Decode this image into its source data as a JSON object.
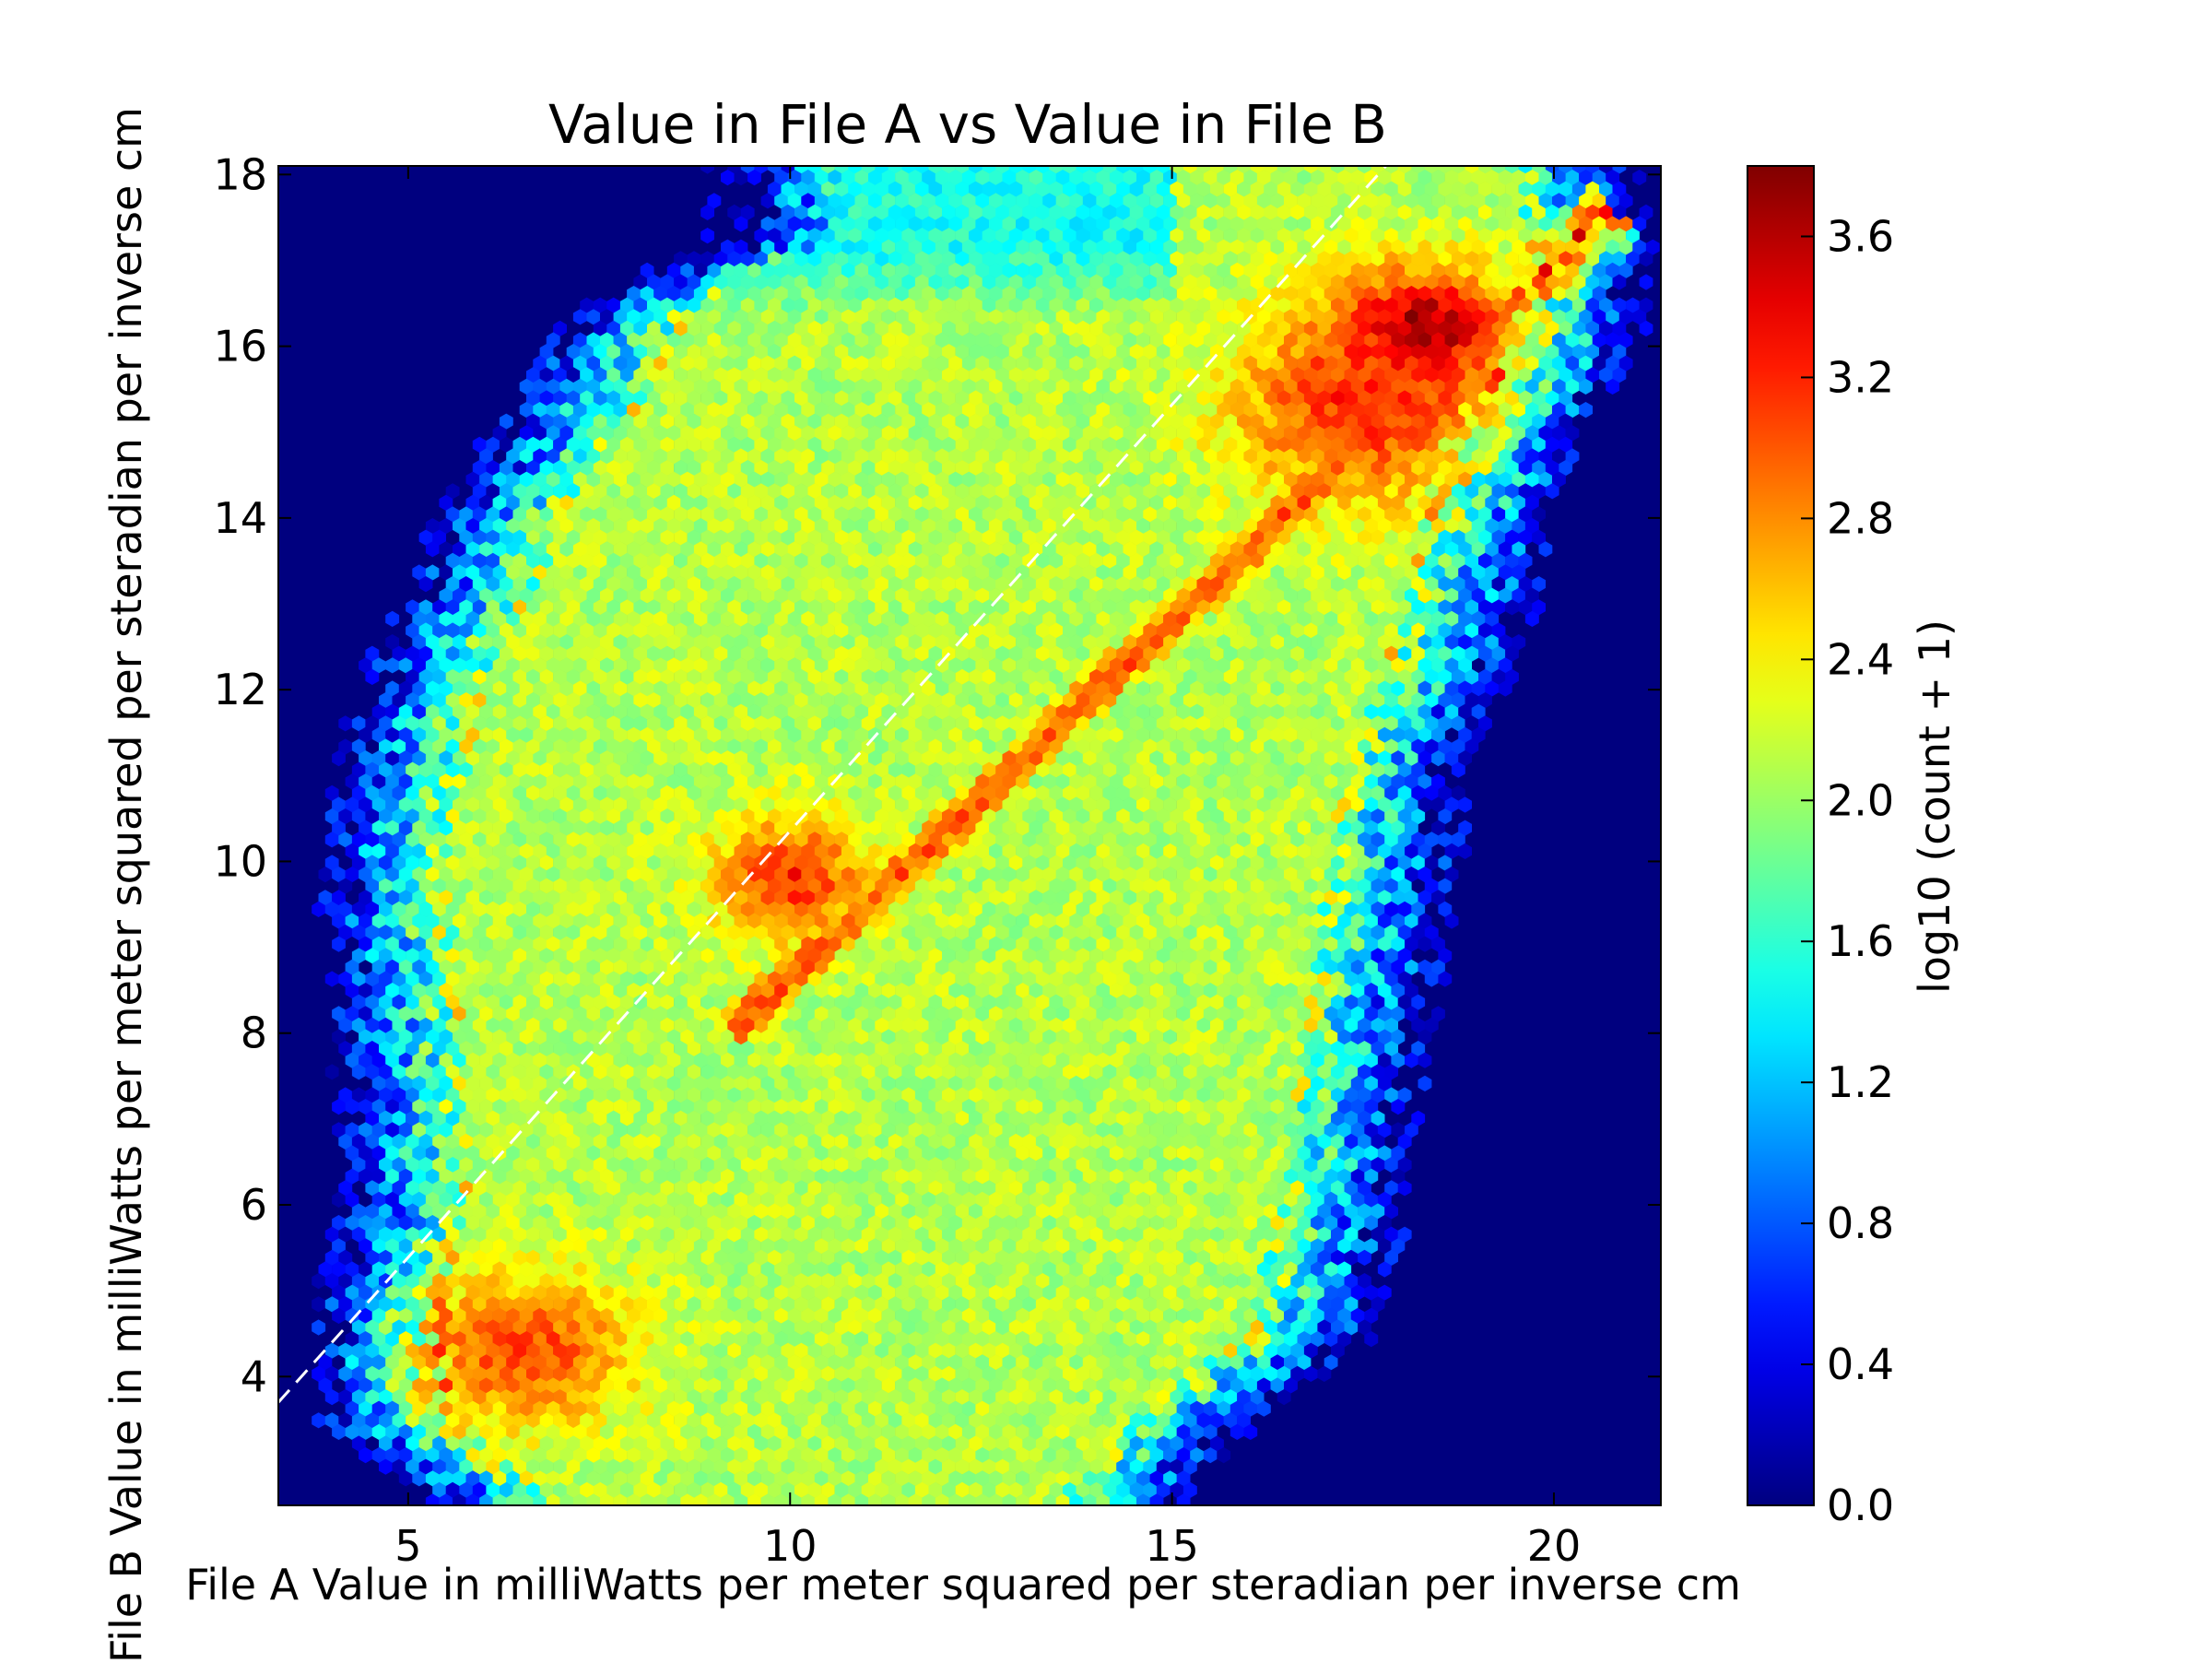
{
  "chart_data": {
    "type": "heatmap",
    "subtype": "hexbin",
    "title": "Value in File A vs Value in File B",
    "xlabel": "File A Value in milliWatts per meter squared per steradian per inverse cm",
    "ylabel": "File B Value in milliWatts per meter squared per steradian per inverse cm",
    "xlim": [
      3.3,
      21.4
    ],
    "ylim": [
      2.5,
      18.1
    ],
    "xticks": [
      5,
      10,
      15,
      20
    ],
    "yticks": [
      4,
      6,
      8,
      10,
      12,
      14,
      16,
      18
    ],
    "background_color": "#00007f",
    "colormap": "jet",
    "colorbar": {
      "label": "log10 (count + 1)",
      "range": [
        0.0,
        3.8
      ],
      "ticks": [
        "0.0",
        "0.4",
        "0.8",
        "1.2",
        "1.6",
        "2.0",
        "2.4",
        "2.8",
        "3.2",
        "3.6"
      ]
    },
    "reference_line": {
      "style": "dashed",
      "color": "#ffffff",
      "from": [
        3.3,
        3.7
      ],
      "to": [
        17.8,
        18.1
      ]
    },
    "density_estimate": {
      "extent_xmin": [
        [
          2.6,
          5.3
        ],
        [
          3.5,
          3.9
        ],
        [
          5,
          3.9
        ],
        [
          6,
          4.2
        ],
        [
          8,
          4.1
        ],
        [
          10,
          3.9
        ],
        [
          12,
          4.4
        ],
        [
          14,
          5.5
        ],
        [
          16.5,
          7.2
        ],
        [
          17.3,
          9
        ]
      ],
      "extent_xmax": [
        [
          2.6,
          15.1
        ],
        [
          3.6,
          16.2
        ],
        [
          4.5,
          17.6
        ],
        [
          6,
          18.0
        ],
        [
          8,
          18.3
        ],
        [
          10,
          18.7
        ],
        [
          11,
          18.8
        ],
        [
          12,
          19.3
        ],
        [
          13,
          19.7
        ],
        [
          14,
          19.9
        ],
        [
          15,
          20.2
        ],
        [
          16,
          21.0
        ],
        [
          17,
          21.3
        ],
        [
          17.8,
          21.0
        ]
      ],
      "peaks": [
        {
          "x": 6.5,
          "y": 4.3,
          "sx": 1.0,
          "sy": 0.6,
          "value": 3.1
        },
        {
          "x": 10.0,
          "y": 9.8,
          "sx": 0.7,
          "sy": 0.5,
          "value": 3.2
        },
        {
          "x": 18.3,
          "y": 16.2,
          "sx": 0.8,
          "sy": 0.5,
          "value": 3.7
        },
        {
          "x": 17.5,
          "y": 15.3,
          "sx": 1.2,
          "sy": 0.8,
          "value": 3.2
        }
      ],
      "ridge": {
        "x0": 9.2,
        "y0": 8.0,
        "x1": 20.8,
        "y1": 17.6,
        "value": 3.0
      },
      "base_level": 2.1
    }
  }
}
